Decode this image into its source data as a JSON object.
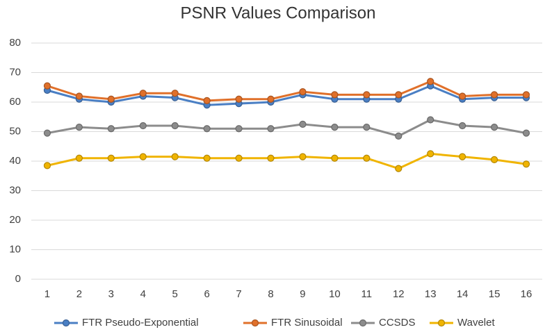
{
  "chart_data": {
    "type": "line",
    "title": "PSNR Values Comparison",
    "categories": [
      "1",
      "2",
      "3",
      "4",
      "5",
      "6",
      "7",
      "8",
      "9",
      "10",
      "11",
      "12",
      "13",
      "14",
      "15",
      "16"
    ],
    "series": [
      {
        "name": "FTR Pseudo-Exponential",
        "color": "#4a7fc4",
        "values": [
          64,
          61,
          60,
          62,
          61.5,
          59,
          59.5,
          60,
          62.5,
          61,
          61,
          61,
          65.5,
          61,
          61.5,
          61.5
        ]
      },
      {
        "name": "FTR Sinusoidal",
        "color": "#e0702a",
        "values": [
          65.5,
          62,
          61,
          63,
          63,
          60.5,
          61,
          61,
          63.5,
          62.5,
          62.5,
          62.5,
          67,
          62,
          62.5,
          62.5
        ]
      },
      {
        "name": "CCSDS",
        "color": "#8c8c8c",
        "values": [
          49.5,
          51.5,
          51,
          52,
          52,
          51,
          51,
          51,
          52.5,
          51.5,
          51.5,
          48.5,
          54,
          52,
          51.5,
          49.5
        ]
      },
      {
        "name": "Wavelet",
        "color": "#f0b400",
        "values": [
          38.5,
          41,
          41,
          41.5,
          41.5,
          41,
          41,
          41,
          41.5,
          41,
          41,
          37.5,
          42.5,
          41.5,
          40.5,
          39
        ]
      }
    ],
    "ylim": [
      0,
      80
    ],
    "yticks": [
      0,
      10,
      20,
      30,
      40,
      50,
      60,
      70,
      80
    ],
    "grid": true,
    "legend": "bottom"
  }
}
